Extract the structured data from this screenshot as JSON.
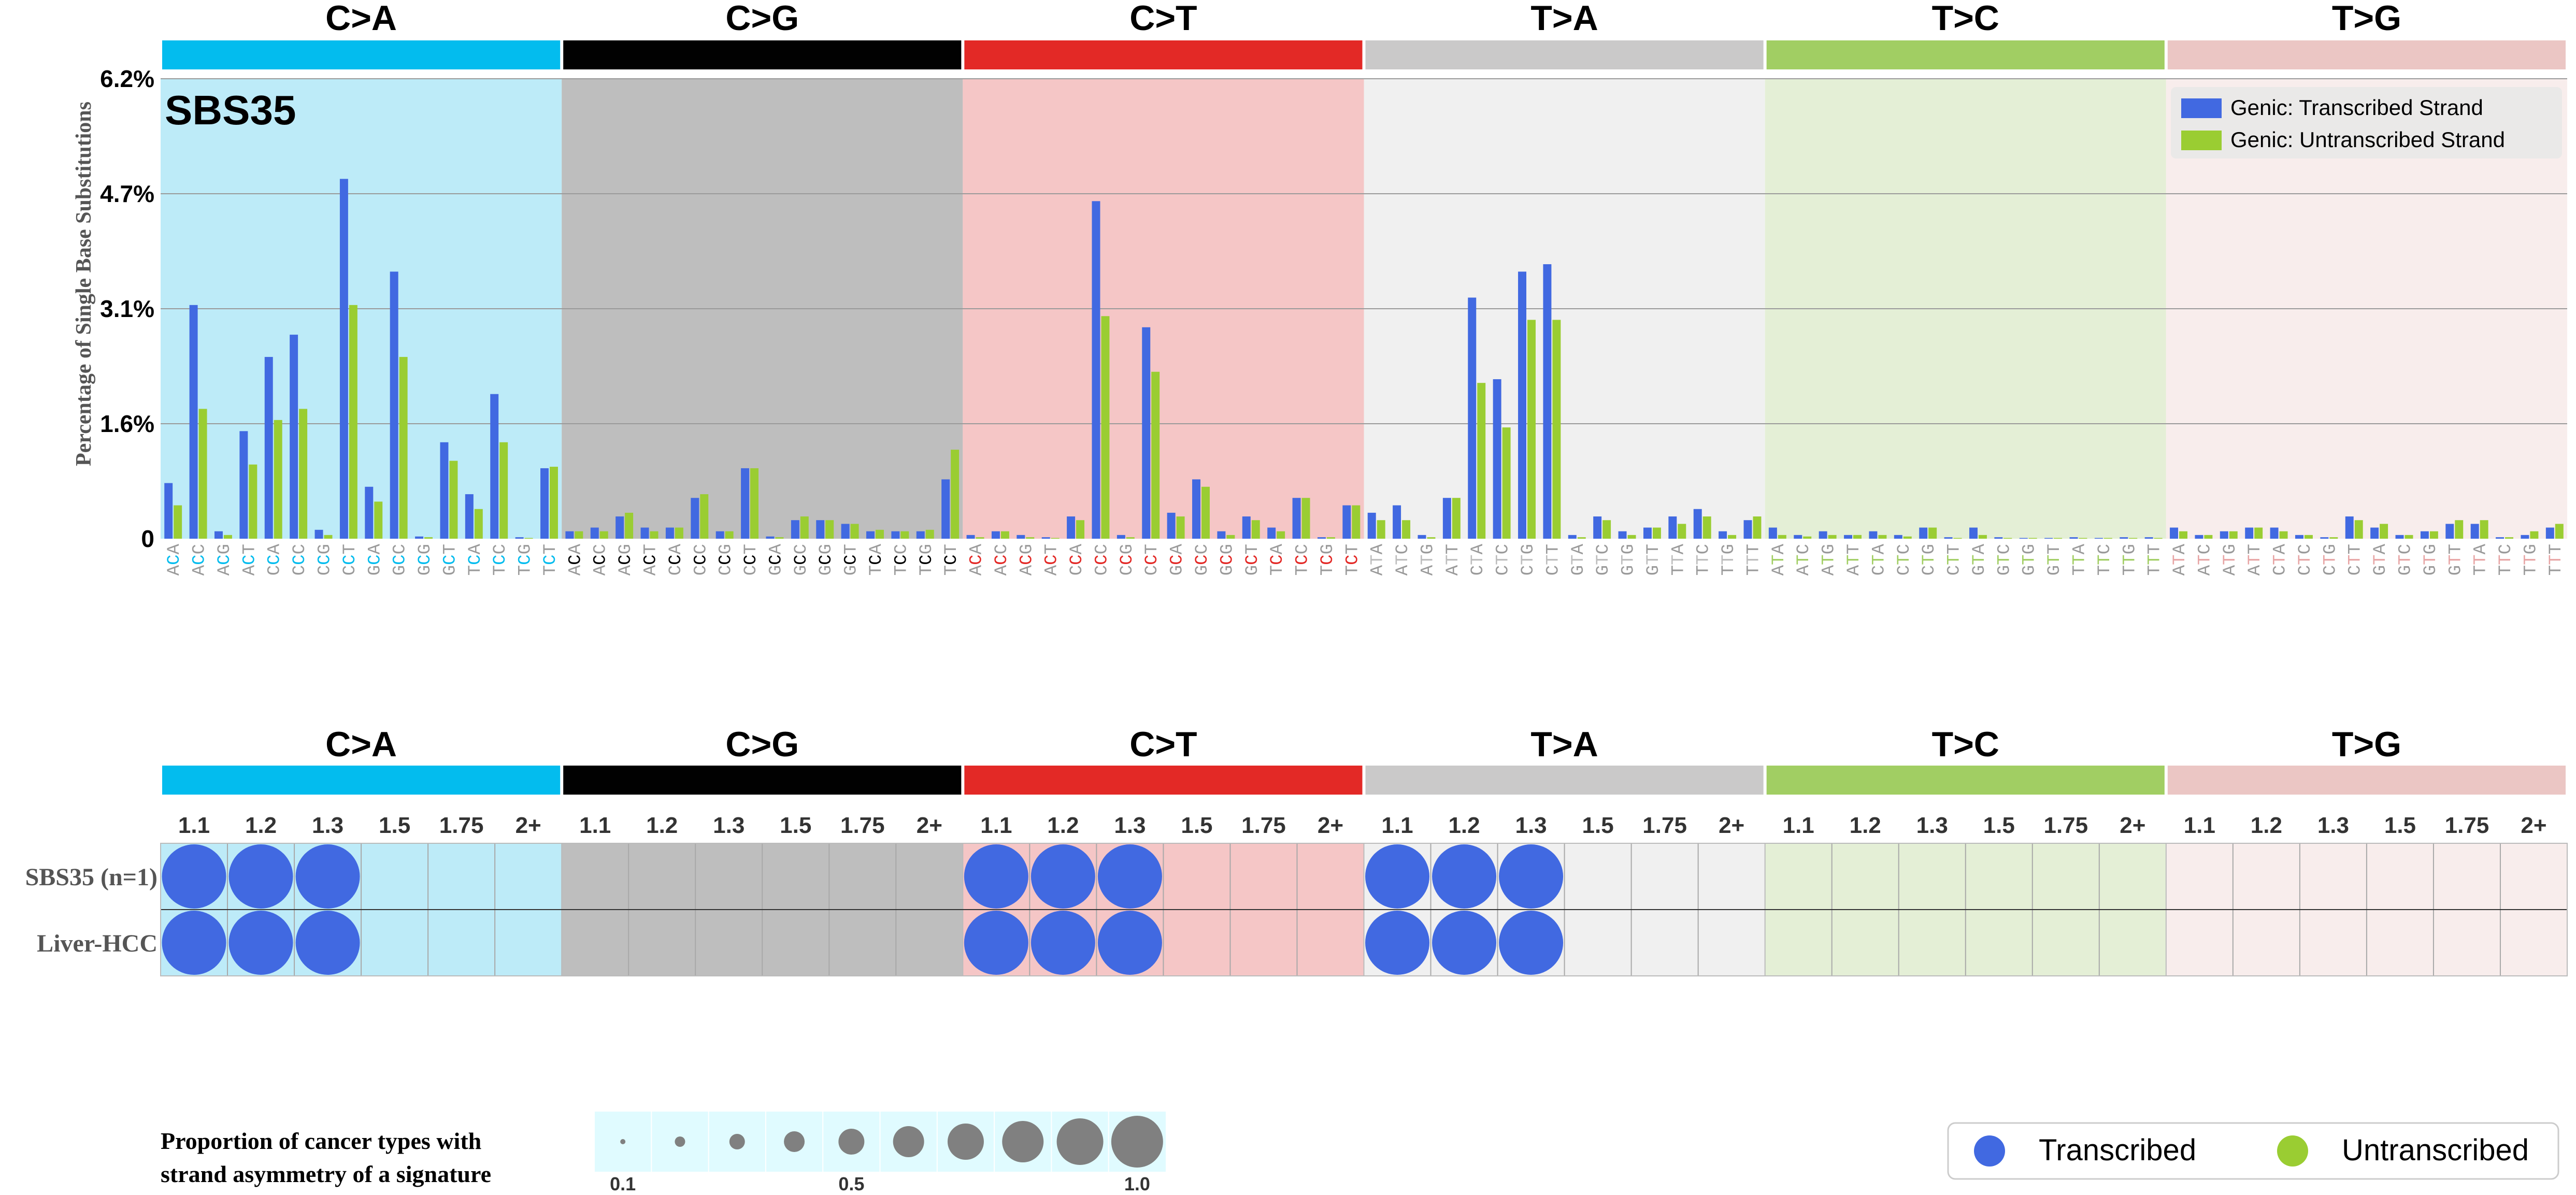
{
  "chart_data": {
    "type": "bar",
    "title": "SBS35",
    "ylabel": "Percentage of Single Base Substitutions",
    "yticks": [
      "0",
      "1.6%",
      "3.1%",
      "4.7%",
      "6.2%"
    ],
    "ytick_values": [
      0,
      1.55,
      3.1,
      4.65,
      6.2
    ],
    "ylim": [
      0,
      6.2
    ],
    "grid": true,
    "legend_position": "top-right",
    "mutation_types": [
      {
        "label": "C>A",
        "bar_color": "#03BCEE",
        "bg_color": "#BDEBF8",
        "ref": "C",
        "letter_color": "#03BCEE"
      },
      {
        "label": "C>G",
        "bar_color": "#010101",
        "bg_color": "#BEBEBE",
        "ref": "C",
        "letter_color": "#010101"
      },
      {
        "label": "C>T",
        "bar_color": "#E32926",
        "bg_color": "#F5C6C6",
        "ref": "C",
        "letter_color": "#E32926"
      },
      {
        "label": "T>A",
        "bar_color": "#CAC9C9",
        "bg_color": "#F0F0F0",
        "ref": "T",
        "letter_color": "#BDBDBD"
      },
      {
        "label": "T>C",
        "bar_color": "#A1CE63",
        "bg_color": "#E4EFD6",
        "ref": "T",
        "letter_color": "#A1CE63"
      },
      {
        "label": "T>G",
        "bar_color": "#EBC6C4",
        "bg_color": "#F8EDEC",
        "ref": "T",
        "letter_color": "#E7A5A5"
      }
    ],
    "contexts": [
      "A_A",
      "A_C",
      "A_G",
      "A_T",
      "C_A",
      "C_C",
      "C_G",
      "C_T",
      "G_A",
      "G_C",
      "G_G",
      "G_T",
      "T_A",
      "T_C",
      "T_G",
      "T_T"
    ],
    "series": [
      {
        "name": "Genic: Transcribed Strand",
        "color": "#4169E1",
        "values": [
          0.75,
          3.15,
          0.1,
          1.45,
          2.45,
          2.75,
          0.12,
          4.85,
          0.7,
          3.6,
          0.03,
          1.3,
          0.6,
          1.95,
          0.02,
          0.95,
          0.1,
          0.15,
          0.3,
          0.15,
          0.15,
          0.55,
          0.1,
          0.95,
          0.03,
          0.25,
          0.25,
          0.2,
          0.1,
          0.1,
          0.1,
          0.8,
          0.05,
          0.1,
          0.05,
          0.02,
          0.3,
          4.55,
          0.05,
          2.85,
          0.35,
          0.8,
          0.1,
          0.3,
          0.15,
          0.55,
          0.02,
          0.45,
          0.35,
          0.45,
          0.05,
          0.55,
          3.25,
          2.15,
          3.6,
          3.7,
          0.05,
          0.3,
          0.1,
          0.15,
          0.3,
          0.4,
          0.1,
          0.25,
          0.15,
          0.05,
          0.1,
          0.05,
          0.1,
          0.05,
          0.15,
          0.02,
          0.15,
          0.02,
          0.01,
          0.01,
          0.02,
          0.01,
          0.02,
          0.02,
          0.15,
          0.05,
          0.1,
          0.15,
          0.15,
          0.05,
          0.02,
          0.3,
          0.15,
          0.05,
          0.1,
          0.2,
          0.2,
          0.02,
          0.05,
          0.15
        ]
      },
      {
        "name": "Genic: Untranscribed Strand",
        "color": "#9ACD32",
        "values": [
          0.45,
          1.75,
          0.05,
          1.0,
          1.6,
          1.75,
          0.05,
          3.15,
          0.5,
          2.45,
          0.02,
          1.05,
          0.4,
          1.3,
          0.01,
          0.97,
          0.1,
          0.1,
          0.35,
          0.1,
          0.15,
          0.6,
          0.1,
          0.95,
          0.02,
          0.3,
          0.25,
          0.2,
          0.12,
          0.1,
          0.12,
          1.2,
          0.02,
          0.1,
          0.02,
          0.01,
          0.25,
          3.0,
          0.02,
          2.25,
          0.3,
          0.7,
          0.05,
          0.25,
          0.1,
          0.55,
          0.02,
          0.45,
          0.25,
          0.25,
          0.02,
          0.55,
          2.1,
          1.5,
          2.95,
          2.95,
          0.02,
          0.25,
          0.05,
          0.15,
          0.2,
          0.3,
          0.05,
          0.3,
          0.05,
          0.03,
          0.05,
          0.05,
          0.05,
          0.03,
          0.15,
          0.01,
          0.05,
          0.01,
          0.01,
          0.01,
          0.01,
          0.01,
          0.01,
          0.01,
          0.1,
          0.05,
          0.1,
          0.15,
          0.1,
          0.05,
          0.02,
          0.25,
          0.2,
          0.05,
          0.1,
          0.25,
          0.25,
          0.02,
          0.1,
          0.2
        ]
      }
    ]
  },
  "asymmetry_panel": {
    "thresholds": [
      "1.1",
      "1.2",
      "1.3",
      "1.5",
      "1.75",
      "2+"
    ],
    "rows": [
      {
        "label": "SBS35 (n=1)",
        "cells": [
          [
            1,
            1,
            1,
            0,
            0,
            0
          ],
          [
            0,
            0,
            0,
            0,
            0,
            0
          ],
          [
            1,
            1,
            1,
            0,
            0,
            0
          ],
          [
            1,
            1,
            1,
            0,
            0,
            0
          ],
          [
            0,
            0,
            0,
            0,
            0,
            0
          ],
          [
            0,
            0,
            0,
            0,
            0,
            0
          ]
        ]
      },
      {
        "label": "Liver-HCC",
        "cells": [
          [
            1,
            1,
            1,
            0,
            0,
            0
          ],
          [
            0,
            0,
            0,
            0,
            0,
            0
          ],
          [
            1,
            1,
            1,
            0,
            0,
            0
          ],
          [
            1,
            1,
            1,
            0,
            0,
            0
          ],
          [
            0,
            0,
            0,
            0,
            0,
            0
          ],
          [
            0,
            0,
            0,
            0,
            0,
            0
          ]
        ]
      }
    ],
    "dot_color": "#4169E1"
  },
  "size_legend": {
    "title_line1": "Proportion of cancer types with",
    "title_line2": "strand asymmetry of a signature",
    "fractions": [
      0.1,
      0.2,
      0.3,
      0.4,
      0.5,
      0.6,
      0.7,
      0.8,
      0.9,
      1.0
    ],
    "tick_labels": [
      "0.1",
      "0.5",
      "1.0"
    ],
    "dot_color": "#808080",
    "bg_color": "#E0FBFF"
  },
  "color_legend": {
    "items": [
      {
        "label": "Transcribed",
        "color": "#4169E1"
      },
      {
        "label": "Untranscribed",
        "color": "#9ACD32"
      }
    ]
  }
}
